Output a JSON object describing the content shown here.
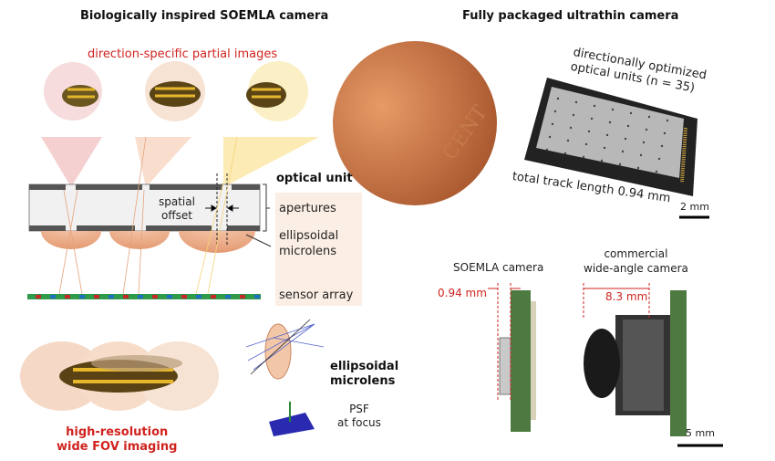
{
  "left_panel": {
    "title": "Biologically inspired SOEMLA camera",
    "partial_images_label": "direction-specific partial images",
    "optical_unit_label": "optical unit",
    "spatial_offset_label": [
      "spatial",
      "offset"
    ],
    "apertures_label": "apertures",
    "microlens_label": [
      "ellipsoidal",
      "microlens"
    ],
    "sensor_label": "sensor array",
    "imaging_label": [
      "high-resolution",
      "wide FOV imaging"
    ],
    "lens_diagram_label": [
      "ellipsoidal",
      "microlens"
    ],
    "psf_label": [
      "PSF",
      "at focus"
    ]
  },
  "right_panel": {
    "title": "Fully packaged ultrathin camera",
    "units_label": [
      "directionally optimized",
      "optical units (n = 35)"
    ],
    "track_label": "total track length 0.94 mm",
    "scale_top": "2 mm",
    "soemla_label": "SOEMLA camera",
    "commercial_label": [
      "commercial",
      "wide-angle camera"
    ],
    "soemla_thickness": "0.94 mm",
    "commercial_thickness": "8.3 mm",
    "scale_bottom": "5 mm",
    "coin_text": "CENT"
  },
  "colors": {
    "accent_red": "#d0231f",
    "cone_red": "#f0b8b8",
    "cone_peach": "#f6d2bd",
    "cone_yellow": "#fbe3a0",
    "microlens": "#e8a07a",
    "board_green": "#5a8a4a"
  }
}
